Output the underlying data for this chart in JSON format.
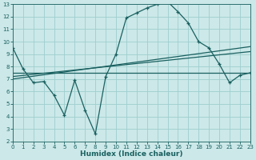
{
  "background_color": "#cce8e8",
  "grid_color": "#9ecece",
  "line_color": "#1a6060",
  "x_label": "Humidex (Indice chaleur)",
  "xlim": [
    0,
    23
  ],
  "ylim": [
    2,
    13
  ],
  "xticks": [
    0,
    1,
    2,
    3,
    4,
    5,
    6,
    7,
    8,
    9,
    10,
    11,
    12,
    13,
    14,
    15,
    16,
    17,
    18,
    19,
    20,
    21,
    22,
    23
  ],
  "yticks": [
    2,
    3,
    4,
    5,
    6,
    7,
    8,
    9,
    10,
    11,
    12,
    13
  ],
  "main_line_x": [
    0,
    1,
    2,
    3,
    4,
    5,
    6,
    7,
    8,
    9,
    10,
    11,
    12,
    13,
    14,
    15,
    16,
    17,
    18,
    19,
    20,
    21,
    22,
    23
  ],
  "main_line_y": [
    9.5,
    7.8,
    6.7,
    6.8,
    5.7,
    4.1,
    6.9,
    4.5,
    2.6,
    7.2,
    9.0,
    11.9,
    12.3,
    12.7,
    13.0,
    13.2,
    12.4,
    11.5,
    10.0,
    9.5,
    8.2,
    6.7,
    7.3,
    7.5
  ],
  "flat_line_x": [
    0,
    23
  ],
  "flat_line_y": [
    7.5,
    7.5
  ],
  "slope_line1_x": [
    0,
    23
  ],
  "slope_line1_y": [
    7.2,
    9.2
  ],
  "slope_line2_x": [
    0,
    23
  ],
  "slope_line2_y": [
    7.0,
    9.6
  ]
}
